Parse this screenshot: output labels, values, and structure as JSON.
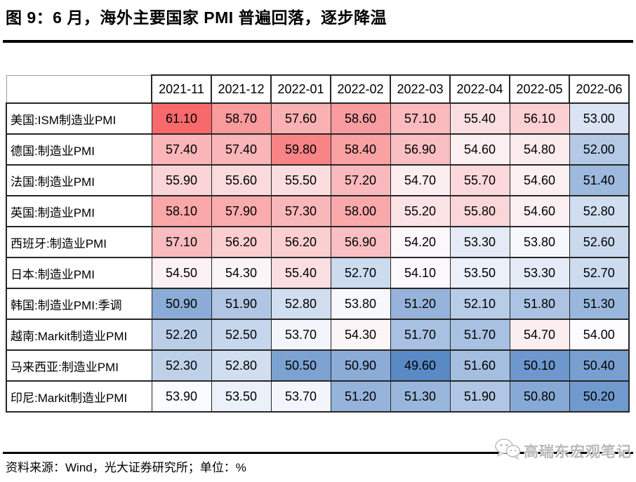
{
  "title": "图 9：6 月，海外主要国家 PMI 普遍回落，逐步降温",
  "chart_data": {
    "type": "heatmap",
    "columns": [
      "2021-11",
      "2021-12",
      "2022-01",
      "2022-02",
      "2022-03",
      "2022-04",
      "2022-05",
      "2022-06"
    ],
    "rows": [
      {
        "label": "美国:ISM制造业PMI",
        "values": [
          61.1,
          58.7,
          57.6,
          58.6,
          57.1,
          55.4,
          56.1,
          53.0
        ]
      },
      {
        "label": "德国:制造业PMI",
        "values": [
          57.4,
          57.4,
          59.8,
          58.4,
          56.9,
          54.6,
          54.8,
          52.0
        ]
      },
      {
        "label": "法国:制造业PMI",
        "values": [
          55.9,
          55.6,
          55.5,
          57.2,
          54.7,
          55.7,
          54.6,
          51.4
        ]
      },
      {
        "label": "英国:制造业PMI",
        "values": [
          58.1,
          57.9,
          57.3,
          58.0,
          55.2,
          55.8,
          54.6,
          52.8
        ]
      },
      {
        "label": "西班牙:制造业PMI",
        "values": [
          57.1,
          56.2,
          56.2,
          56.9,
          54.2,
          53.3,
          53.8,
          52.6
        ]
      },
      {
        "label": "日本:制造业PMI",
        "values": [
          54.5,
          54.3,
          55.4,
          52.7,
          54.1,
          53.5,
          53.3,
          52.7
        ]
      },
      {
        "label": "韩国:制造业PMI:季调",
        "values": [
          50.9,
          51.9,
          52.8,
          53.8,
          51.2,
          52.1,
          51.8,
          51.3
        ]
      },
      {
        "label": "越南:Markit制造业PMI",
        "values": [
          52.2,
          52.5,
          53.7,
          54.3,
          51.7,
          51.7,
          54.7,
          54.0
        ]
      },
      {
        "label": "马来西亚:制造业PMI",
        "values": [
          52.3,
          52.8,
          50.5,
          50.9,
          49.6,
          51.6,
          50.1,
          50.4
        ]
      },
      {
        "label": "印尼:Markit制造业PMI",
        "values": [
          53.9,
          53.5,
          53.7,
          51.2,
          51.3,
          51.9,
          50.8,
          50.2
        ]
      }
    ],
    "value_decimals": 2,
    "unit": "%",
    "color_scale": {
      "min_value": 49.6,
      "mid_value": 53.95,
      "max_value": 61.1,
      "min_color": "#5A8AC6",
      "mid_color": "#FCFCFF",
      "max_color": "#F8696B"
    }
  },
  "footer": {
    "source_note": "资料来源：Wind，光大证券研究所；单位：%"
  },
  "watermark": {
    "label": "高瑞东宏观笔记",
    "icon": "wechat-icon"
  }
}
